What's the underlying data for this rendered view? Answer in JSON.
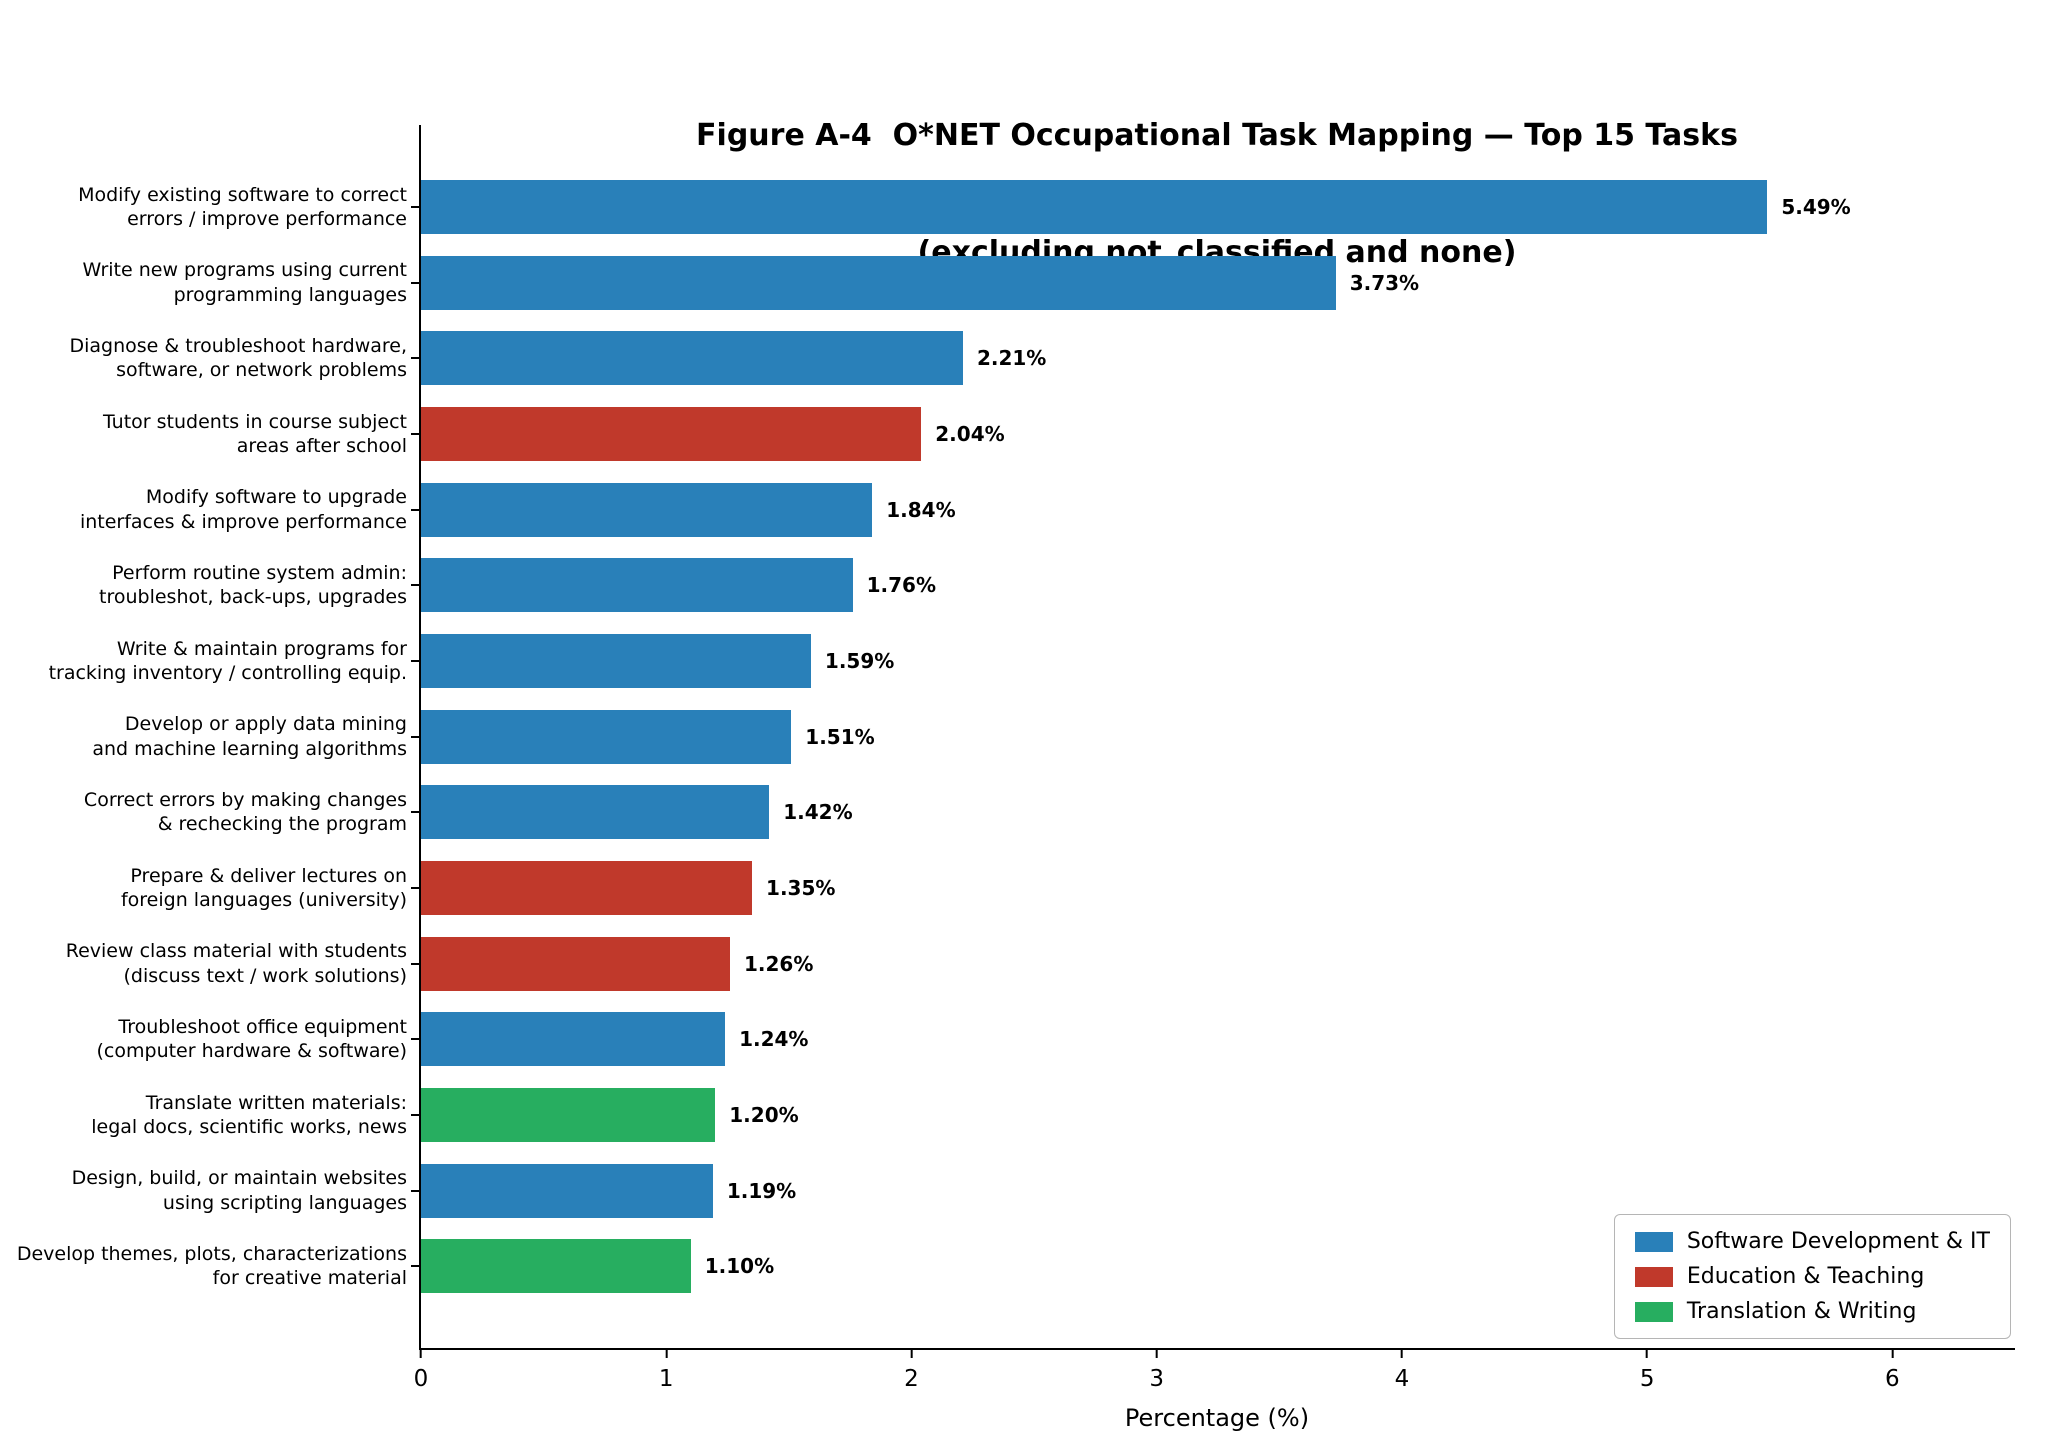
{
  "chart_data": {
    "type": "bar",
    "orientation": "horizontal",
    "title_line1": "Figure A-4  O*NET Occupational Task Mapping — Top 15 Tasks",
    "title_line2": "(excluding not_classified and none)",
    "xlabel": "Percentage (%)",
    "xlim": [
      0,
      6.5
    ],
    "xticks": [
      0,
      1,
      2,
      3,
      4,
      5,
      6
    ],
    "grid": false,
    "legend": {
      "position": "lower right",
      "entries": [
        {
          "label": "Software Development & IT",
          "color": "#2980b9"
        },
        {
          "label": "Education & Teaching",
          "color": "#c0392b"
        },
        {
          "label": "Translation & Writing",
          "color": "#27ae60"
        }
      ]
    },
    "bars": [
      {
        "label_lines": [
          "Modify existing software to correct",
          "errors / improve performance"
        ],
        "value": 5.49,
        "value_label": "5.49%",
        "group": "Software Development & IT"
      },
      {
        "label_lines": [
          "Write new programs using current",
          "programming languages"
        ],
        "value": 3.73,
        "value_label": "3.73%",
        "group": "Software Development & IT"
      },
      {
        "label_lines": [
          "Diagnose & troubleshoot hardware,",
          "software, or network problems"
        ],
        "value": 2.21,
        "value_label": "2.21%",
        "group": "Software Development & IT"
      },
      {
        "label_lines": [
          "Tutor students in course subject",
          "areas after school"
        ],
        "value": 2.04,
        "value_label": "2.04%",
        "group": "Education & Teaching"
      },
      {
        "label_lines": [
          "Modify software to upgrade",
          "interfaces & improve performance"
        ],
        "value": 1.84,
        "value_label": "1.84%",
        "group": "Software Development & IT"
      },
      {
        "label_lines": [
          "Perform routine system admin:",
          "troubleshot, back-ups, upgrades"
        ],
        "value": 1.76,
        "value_label": "1.76%",
        "group": "Software Development & IT"
      },
      {
        "label_lines": [
          "Write & maintain programs for",
          "tracking inventory / controlling equip."
        ],
        "value": 1.59,
        "value_label": "1.59%",
        "group": "Software Development & IT"
      },
      {
        "label_lines": [
          "Develop or apply data mining",
          "and machine learning algorithms"
        ],
        "value": 1.51,
        "value_label": "1.51%",
        "group": "Software Development & IT"
      },
      {
        "label_lines": [
          "Correct errors by making changes",
          "& rechecking the program"
        ],
        "value": 1.42,
        "value_label": "1.42%",
        "group": "Software Development & IT"
      },
      {
        "label_lines": [
          "Prepare & deliver lectures on",
          "foreign languages (university)"
        ],
        "value": 1.35,
        "value_label": "1.35%",
        "group": "Education & Teaching"
      },
      {
        "label_lines": [
          "Review class material with students",
          "(discuss text / work solutions)"
        ],
        "value": 1.26,
        "value_label": "1.26%",
        "group": "Education & Teaching"
      },
      {
        "label_lines": [
          "Troubleshoot office equipment",
          "(computer hardware & software)"
        ],
        "value": 1.24,
        "value_label": "1.24%",
        "group": "Software Development & IT"
      },
      {
        "label_lines": [
          "Translate written materials:",
          "legal docs, scientific works, news"
        ],
        "value": 1.2,
        "value_label": "1.20%",
        "group": "Translation & Writing"
      },
      {
        "label_lines": [
          "Design, build, or maintain websites",
          "using scripting languages"
        ],
        "value": 1.19,
        "value_label": "1.19%",
        "group": "Software Development & IT"
      },
      {
        "label_lines": [
          "Develop themes, plots, characterizations",
          "for creative material"
        ],
        "value": 1.1,
        "value_label": "1.10%",
        "group": "Translation & Writing"
      }
    ]
  }
}
